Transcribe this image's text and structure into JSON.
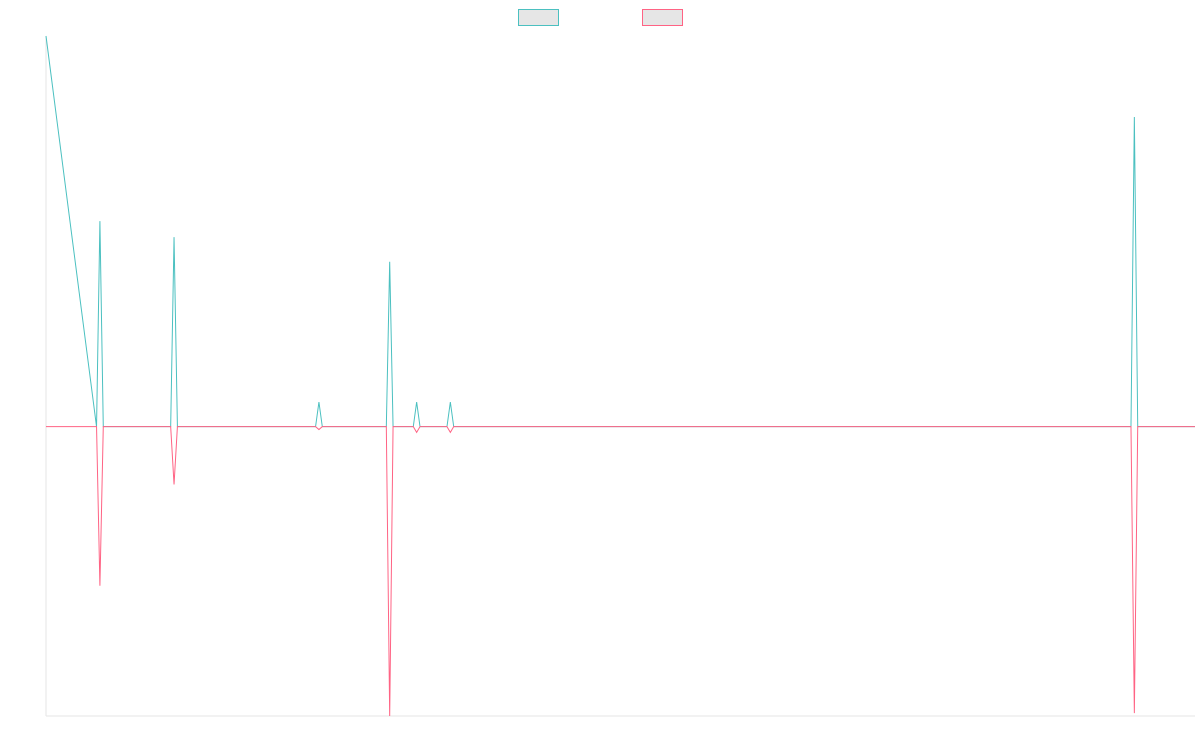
{
  "chart_data": {
    "type": "line",
    "title": "",
    "xlabel": "",
    "ylabel": "",
    "grid": false,
    "legend": {
      "placement": "top-center",
      "show_labels": false
    },
    "x": [
      0,
      15,
      16,
      17,
      37,
      38,
      39,
      80,
      81,
      82,
      101,
      102,
      103,
      109,
      110,
      111,
      119,
      120,
      121,
      322,
      323,
      324,
      341
    ],
    "ylim": [
      -1.0,
      1.35
    ],
    "series": [
      {
        "color": "#4BC0C0",
        "fill": "#E6E6E6",
        "values": [
          1.35,
          0,
          0.71,
          0,
          0,
          0.655,
          0,
          0,
          0.085,
          0,
          0,
          0.57,
          0,
          0,
          0.085,
          0,
          0,
          0.085,
          0,
          0,
          1.07,
          0,
          0
        ]
      },
      {
        "color": "#FF6384",
        "fill": "#E6E6E6",
        "values": [
          0,
          0,
          -0.55,
          0,
          0,
          -0.2,
          0,
          0,
          -0.01,
          0,
          0,
          -1.0,
          0,
          0,
          -0.02,
          0,
          0,
          -0.02,
          0,
          0,
          -0.99,
          0,
          0
        ]
      }
    ]
  }
}
